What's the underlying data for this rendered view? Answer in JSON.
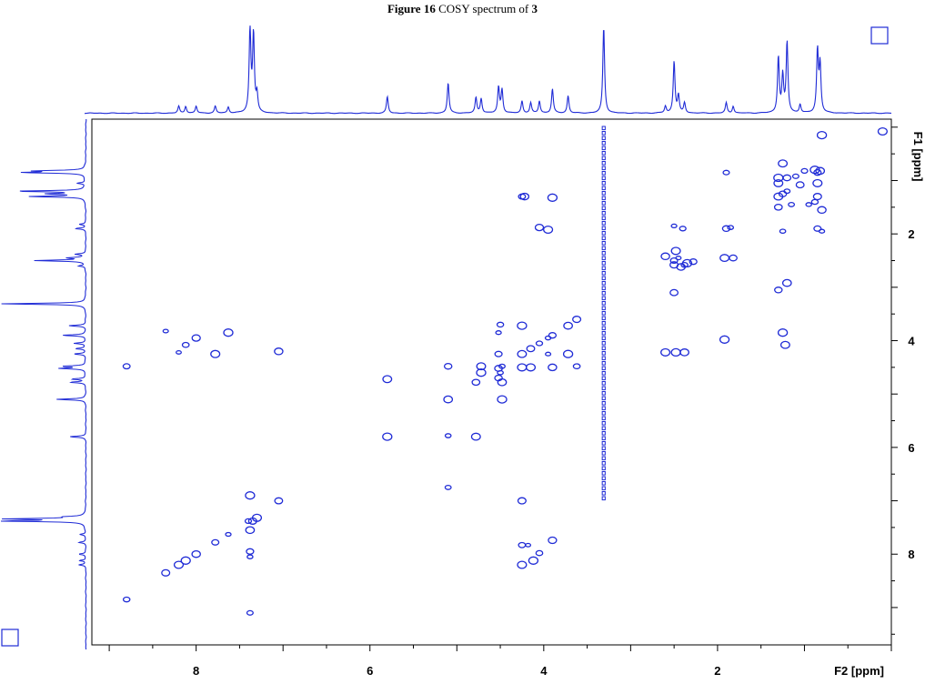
{
  "title": {
    "figure_label": "Figure 16",
    "caption_text": "COSY spectrum of",
    "compound": "3"
  },
  "colors": {
    "spectrum": "#1f2bd6",
    "frame": "#000000",
    "background": "#ffffff"
  },
  "chart_data": {
    "type": "scatter",
    "title": "Figure 16 COSY spectrum of 3",
    "xlabel": "F2 [ppm]",
    "ylabel": "F1 [ppm]",
    "xlim": [
      9.2,
      0.0
    ],
    "ylim": [
      9.7,
      -0.15
    ],
    "x_ticks": [
      "8",
      "6",
      "4",
      "2"
    ],
    "y_ticks": [
      "2",
      "4",
      "6",
      "8"
    ],
    "x_tick_values": [
      8,
      6,
      4,
      2
    ],
    "y_tick_values": [
      2,
      4,
      6,
      8
    ],
    "grid": false,
    "projection_peaks": [
      {
        "shift": 8.2,
        "intensity": 0.08
      },
      {
        "shift": 8.12,
        "intensity": 0.08
      },
      {
        "shift": 8.0,
        "intensity": 0.08
      },
      {
        "shift": 7.78,
        "intensity": 0.08
      },
      {
        "shift": 7.63,
        "intensity": 0.07
      },
      {
        "shift": 7.38,
        "intensity": 0.97
      },
      {
        "shift": 7.34,
        "intensity": 0.9
      },
      {
        "shift": 7.3,
        "intensity": 0.2
      },
      {
        "shift": 5.8,
        "intensity": 0.19
      },
      {
        "shift": 5.1,
        "intensity": 0.35
      },
      {
        "shift": 4.78,
        "intensity": 0.18
      },
      {
        "shift": 4.72,
        "intensity": 0.17
      },
      {
        "shift": 4.52,
        "intensity": 0.3
      },
      {
        "shift": 4.48,
        "intensity": 0.27
      },
      {
        "shift": 4.25,
        "intensity": 0.14
      },
      {
        "shift": 4.15,
        "intensity": 0.12
      },
      {
        "shift": 4.05,
        "intensity": 0.14
      },
      {
        "shift": 3.9,
        "intensity": 0.28
      },
      {
        "shift": 3.72,
        "intensity": 0.2
      },
      {
        "shift": 3.31,
        "intensity": 1.0
      },
      {
        "shift": 2.6,
        "intensity": 0.08
      },
      {
        "shift": 2.5,
        "intensity": 0.6
      },
      {
        "shift": 2.45,
        "intensity": 0.2
      },
      {
        "shift": 2.38,
        "intensity": 0.12
      },
      {
        "shift": 1.9,
        "intensity": 0.12
      },
      {
        "shift": 1.82,
        "intensity": 0.08
      },
      {
        "shift": 1.3,
        "intensity": 0.65
      },
      {
        "shift": 1.25,
        "intensity": 0.42
      },
      {
        "shift": 1.2,
        "intensity": 0.82
      },
      {
        "shift": 1.05,
        "intensity": 0.1
      },
      {
        "shift": 0.85,
        "intensity": 0.72
      },
      {
        "shift": 0.82,
        "intensity": 0.55
      }
    ],
    "solvent_line_shift": 3.31,
    "cross_peaks": [
      [
        8.2,
        4.22
      ],
      [
        8.12,
        4.08
      ],
      [
        8.0,
        3.95
      ],
      [
        7.78,
        4.25
      ],
      [
        7.63,
        3.85
      ],
      [
        7.05,
        4.2
      ],
      [
        8.8,
        4.48
      ],
      [
        8.35,
        3.82
      ],
      [
        8.8,
        8.85
      ],
      [
        8.35,
        8.35
      ],
      [
        8.2,
        8.2
      ],
      [
        8.12,
        8.12
      ],
      [
        8.0,
        8.0
      ],
      [
        7.78,
        7.78
      ],
      [
        7.63,
        7.63
      ],
      [
        7.4,
        7.38
      ],
      [
        7.35,
        7.38
      ],
      [
        7.3,
        7.32
      ],
      [
        7.38,
        6.9
      ],
      [
        7.38,
        7.55
      ],
      [
        7.38,
        7.95
      ],
      [
        7.38,
        8.05
      ],
      [
        7.38,
        9.1
      ],
      [
        7.05,
        7.0
      ],
      [
        5.8,
        4.72
      ],
      [
        5.8,
        5.8
      ],
      [
        5.1,
        5.1
      ],
      [
        5.1,
        4.48
      ],
      [
        5.1,
        5.78
      ],
      [
        5.1,
        6.75
      ],
      [
        4.78,
        4.78
      ],
      [
        4.78,
        5.8
      ],
      [
        4.72,
        4.6
      ],
      [
        4.72,
        4.48
      ],
      [
        4.52,
        4.52
      ],
      [
        4.48,
        4.48
      ],
      [
        4.5,
        4.6
      ],
      [
        4.52,
        4.7
      ],
      [
        4.48,
        4.78
      ],
      [
        4.48,
        5.1
      ],
      [
        4.25,
        4.25
      ],
      [
        4.15,
        4.15
      ],
      [
        4.05,
        4.05
      ],
      [
        3.95,
        3.95
      ],
      [
        3.9,
        3.9
      ],
      [
        3.72,
        3.72
      ],
      [
        4.25,
        3.72
      ],
      [
        4.25,
        4.5
      ],
      [
        4.25,
        7.0
      ],
      [
        4.5,
        3.7
      ],
      [
        4.52,
        3.85
      ],
      [
        4.52,
        4.25
      ],
      [
        3.9,
        4.5
      ],
      [
        3.72,
        4.25
      ],
      [
        4.15,
        4.5
      ],
      [
        3.62,
        3.6
      ],
      [
        3.62,
        4.48
      ],
      [
        3.95,
        4.25
      ],
      [
        4.25,
        1.3
      ],
      [
        4.22,
        1.3
      ],
      [
        3.9,
        1.32
      ],
      [
        3.95,
        1.92
      ],
      [
        4.05,
        1.88
      ],
      [
        4.25,
        7.83
      ],
      [
        4.18,
        7.83
      ],
      [
        4.05,
        7.98
      ],
      [
        3.9,
        7.74
      ],
      [
        4.25,
        8.2
      ],
      [
        4.12,
        8.12
      ],
      [
        2.6,
        2.42
      ],
      [
        2.5,
        2.5
      ],
      [
        2.45,
        2.45
      ],
      [
        2.38,
        2.58
      ],
      [
        2.5,
        2.58
      ],
      [
        2.48,
        2.32
      ],
      [
        2.35,
        2.55
      ],
      [
        2.42,
        2.62
      ],
      [
        2.28,
        2.52
      ],
      [
        2.5,
        1.85
      ],
      [
        2.4,
        1.9
      ],
      [
        2.5,
        3.1
      ],
      [
        2.6,
        4.22
      ],
      [
        2.48,
        4.22
      ],
      [
        2.38,
        4.22
      ],
      [
        1.9,
        1.9
      ],
      [
        1.85,
        1.88
      ],
      [
        1.9,
        0.85
      ],
      [
        1.82,
        2.45
      ],
      [
        1.92,
        2.45
      ],
      [
        1.92,
        3.98
      ],
      [
        1.3,
        1.3
      ],
      [
        1.25,
        1.25
      ],
      [
        1.2,
        1.2
      ],
      [
        1.15,
        1.45
      ],
      [
        1.3,
        1.5
      ],
      [
        1.25,
        0.68
      ],
      [
        1.3,
        0.95
      ],
      [
        1.3,
        1.05
      ],
      [
        1.2,
        0.95
      ],
      [
        1.1,
        0.92
      ],
      [
        1.25,
        1.95
      ],
      [
        1.3,
        3.05
      ],
      [
        1.2,
        2.92
      ],
      [
        1.25,
        3.85
      ],
      [
        1.22,
        4.08
      ],
      [
        1.05,
        1.08
      ],
      [
        1.0,
        0.82
      ],
      [
        0.95,
        1.45
      ],
      [
        0.85,
        0.85
      ],
      [
        0.82,
        0.82
      ],
      [
        0.88,
        0.8
      ],
      [
        0.85,
        1.05
      ],
      [
        0.85,
        1.3
      ],
      [
        0.88,
        1.4
      ],
      [
        0.8,
        1.95
      ],
      [
        0.85,
        1.9
      ],
      [
        0.8,
        1.55
      ],
      [
        0.8,
        0.15
      ],
      [
        0.1,
        0.08
      ]
    ]
  }
}
